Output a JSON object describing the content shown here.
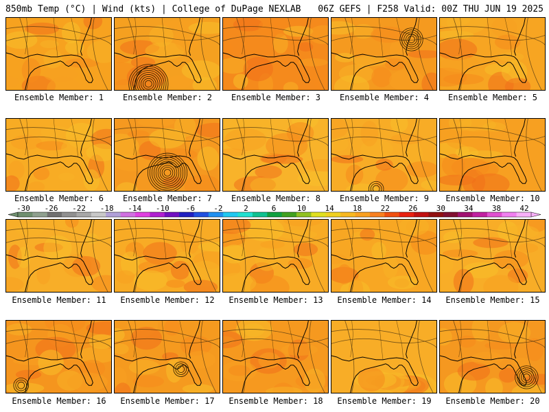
{
  "header": {
    "left": "850mb Temp (°C) | Wind (kts) | College of DuPage NEXLAB",
    "right": "06Z GEFS | F258 Valid: 00Z THU JUN 19 2025"
  },
  "panel_label_prefix": "Ensemble Member: ",
  "members": [
    {
      "id": "1",
      "tint": "#f7a21f",
      "low": null
    },
    {
      "id": "2",
      "tint": "#f5a020",
      "low": "strong"
    },
    {
      "id": "3",
      "tint": "#f58a1c",
      "low": null
    },
    {
      "id": "4",
      "tint": "#f59a1f",
      "low": "medium"
    },
    {
      "id": "5",
      "tint": "#f7a522",
      "low": null
    },
    {
      "id": "6",
      "tint": "#f8ac24",
      "low": null
    },
    {
      "id": "7",
      "tint": "#f59920",
      "low": "strong"
    },
    {
      "id": "8",
      "tint": "#f8b32a",
      "low": null
    },
    {
      "id": "9",
      "tint": "#f8ac26",
      "low": "weak"
    },
    {
      "id": "10",
      "tint": "#f7a021",
      "low": null
    },
    {
      "id": "11",
      "tint": "#f8ae28",
      "low": null
    },
    {
      "id": "12",
      "tint": "#f8ab25",
      "low": null
    },
    {
      "id": "13",
      "tint": "#f8ab25",
      "low": null
    },
    {
      "id": "14",
      "tint": "#f8a723",
      "low": null
    },
    {
      "id": "15",
      "tint": "#f8ad27",
      "low": null
    },
    {
      "id": "16",
      "tint": "#f5951e",
      "low": "weak"
    },
    {
      "id": "17",
      "tint": "#f59a1f",
      "low": "weak"
    },
    {
      "id": "18",
      "tint": "#f6991f",
      "low": null
    },
    {
      "id": "19",
      "tint": "#f8ad27",
      "low": null
    },
    {
      "id": "20",
      "tint": "#f59820",
      "low": "medium"
    }
  ],
  "colorbar": {
    "ticks": [
      "-30",
      "-26",
      "-22",
      "-18",
      "-14",
      "-10",
      "-6",
      "-2",
      "2",
      "6",
      "10",
      "14",
      "18",
      "22",
      "26",
      "30",
      "34",
      "38",
      "42"
    ],
    "colors": [
      "#6f8f6f",
      "#8fa08f",
      "#707070",
      "#909090",
      "#a8a8a8",
      "#c8c8c8",
      "#b0a0d8",
      "#d070e0",
      "#e040e0",
      "#b020d0",
      "#7010c0",
      "#2020c0",
      "#2050e0",
      "#2090f0",
      "#20c8f0",
      "#20e0d0",
      "#10c090",
      "#10a040",
      "#40a020",
      "#90c020",
      "#e0e020",
      "#f0d020",
      "#f8b820",
      "#f8a020",
      "#f88020",
      "#f05010",
      "#e82010",
      "#c01010",
      "#901010",
      "#801030",
      "#a01070",
      "#c020a0",
      "#e050d0",
      "#f080f0",
      "#f8b0f8"
    ]
  }
}
